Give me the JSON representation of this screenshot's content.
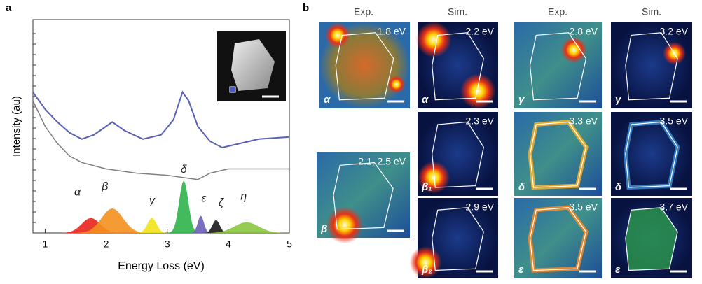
{
  "chart_data": {
    "type": "line",
    "panel_label": "a",
    "xlabel": "Energy Loss (eV)",
    "ylabel": "Intensity (au)",
    "xlim": [
      0.8,
      5
    ],
    "ylim": [
      0,
      100
    ],
    "xticks": [
      1,
      2,
      3,
      4,
      5
    ],
    "series": [
      {
        "color": "#5a5fb8",
        "x": [
          0.8,
          1.0,
          1.2,
          1.4,
          1.6,
          1.8,
          2.0,
          2.1,
          2.3,
          2.6,
          2.9,
          3.1,
          3.25,
          3.35,
          3.5,
          3.7,
          3.9,
          4.2,
          4.5,
          5.0
        ],
        "values": [
          66,
          58,
          52,
          47,
          44,
          46,
          50,
          52,
          48,
          44,
          46,
          53,
          66,
          62,
          50,
          43,
          40,
          42,
          44,
          45
        ]
      },
      {
        "color": "#808080",
        "x": [
          0.8,
          1.0,
          1.2,
          1.4,
          1.6,
          2.0,
          2.5,
          3.0,
          3.5,
          3.7,
          4.0,
          5.0
        ],
        "values": [
          62,
          50,
          42,
          36,
          33,
          30,
          28,
          27,
          25,
          28,
          30,
          30
        ]
      }
    ],
    "peaks": [
      {
        "name": "α",
        "color": "#e8231e",
        "center": 1.75,
        "height": 7,
        "width": 0.3
      },
      {
        "name": "β",
        "color": "#f4901e",
        "center": 2.1,
        "height": 11.5,
        "width": 0.35
      },
      {
        "name": "γ",
        "color": "#f2e31b",
        "center": 2.75,
        "height": 7,
        "width": 0.15
      },
      {
        "name": "δ",
        "color": "#2fb24a",
        "center": 3.27,
        "height": 24.5,
        "width": 0.15
      },
      {
        "name": "ε",
        "color": "#6c5fb5",
        "center": 3.55,
        "height": 8,
        "width": 0.1
      },
      {
        "name": "ζ",
        "color": "#1a1a1a",
        "center": 3.8,
        "height": 6,
        "width": 0.12
      },
      {
        "name": "η",
        "color": "#8cc63f",
        "center": 4.3,
        "height": 5,
        "width": 0.4
      }
    ]
  },
  "panel_b": {
    "panel_label": "b",
    "headers": [
      "Exp.",
      "Sim.",
      "Exp.",
      "Sim."
    ],
    "images": [
      {
        "energy": "1.8 eV",
        "mode": "α"
      },
      {
        "energy": "2.1, 2.5 eV",
        "mode": "β"
      },
      {
        "energy": "2.2 eV",
        "mode": "α"
      },
      {
        "energy": "2.3 eV",
        "mode": "β₁"
      },
      {
        "energy": "2.9 eV",
        "mode": "β₂"
      },
      {
        "energy": "2.8 eV",
        "mode": "γ"
      },
      {
        "energy": "3.3 eV",
        "mode": "δ"
      },
      {
        "energy": "3.5 eV",
        "mode": "ε"
      },
      {
        "energy": "3.2 eV",
        "mode": "γ"
      },
      {
        "energy": "3.5 eV",
        "mode": "δ"
      },
      {
        "energy": "3.7 eV",
        "mode": "ε"
      }
    ]
  }
}
